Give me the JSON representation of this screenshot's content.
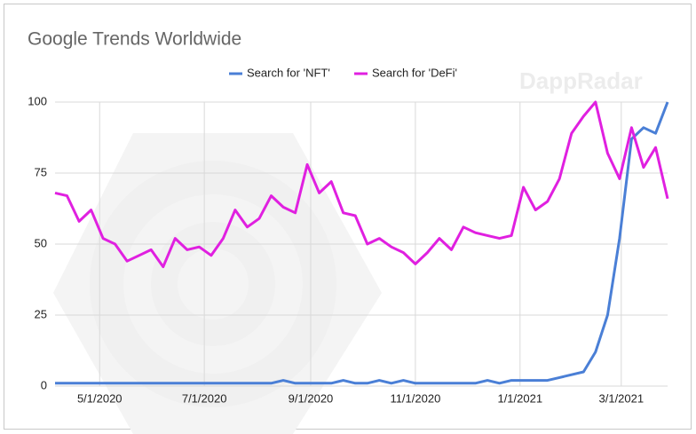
{
  "chart_data": {
    "type": "line",
    "title": "Google Trends Worldwide",
    "watermark": "DappRadar",
    "x": [
      "2020-04-05",
      "2020-04-12",
      "2020-04-19",
      "2020-04-26",
      "2020-05-03",
      "2020-05-10",
      "2020-05-17",
      "2020-05-24",
      "2020-05-31",
      "2020-06-07",
      "2020-06-14",
      "2020-06-21",
      "2020-06-28",
      "2020-07-05",
      "2020-07-12",
      "2020-07-19",
      "2020-07-26",
      "2020-08-02",
      "2020-08-09",
      "2020-08-16",
      "2020-08-23",
      "2020-08-30",
      "2020-09-06",
      "2020-09-13",
      "2020-09-20",
      "2020-09-27",
      "2020-10-04",
      "2020-10-11",
      "2020-10-18",
      "2020-10-25",
      "2020-11-01",
      "2020-11-08",
      "2020-11-15",
      "2020-11-22",
      "2020-11-29",
      "2020-12-06",
      "2020-12-13",
      "2020-12-20",
      "2020-12-27",
      "2021-01-03",
      "2021-01-10",
      "2021-01-17",
      "2021-01-24",
      "2021-01-31",
      "2021-02-07",
      "2021-02-14",
      "2021-02-21",
      "2021-02-28",
      "2021-03-07",
      "2021-03-14",
      "2021-03-21",
      "2021-03-28"
    ],
    "series": [
      {
        "name": "Search for 'NFT'",
        "color": "#4a7fd6",
        "values": [
          1,
          1,
          1,
          1,
          1,
          1,
          1,
          1,
          1,
          1,
          1,
          1,
          1,
          1,
          1,
          1,
          1,
          1,
          1,
          2,
          1,
          1,
          1,
          1,
          2,
          1,
          1,
          2,
          1,
          2,
          1,
          1,
          1,
          1,
          1,
          1,
          2,
          1,
          2,
          2,
          2,
          2,
          3,
          4,
          5,
          12,
          25,
          52,
          87,
          91,
          89,
          100
        ]
      },
      {
        "name": "Search for 'DeFi'",
        "color": "#e020e0",
        "values": [
          68,
          67,
          58,
          62,
          52,
          50,
          44,
          46,
          48,
          42,
          52,
          48,
          49,
          46,
          52,
          62,
          56,
          59,
          67,
          63,
          61,
          78,
          68,
          72,
          61,
          60,
          50,
          52,
          49,
          47,
          43,
          47,
          52,
          48,
          56,
          54,
          53,
          52,
          53,
          70,
          62,
          65,
          73,
          89,
          95,
          100,
          82,
          73,
          91,
          77,
          84,
          66
        ]
      }
    ],
    "xlim": [
      "2020-04-05",
      "2021-03-28"
    ],
    "xticks": [
      {
        "value": "2020-05-01",
        "label": "5/1/2020"
      },
      {
        "value": "2020-07-01",
        "label": "7/1/2020"
      },
      {
        "value": "2020-09-01",
        "label": "9/1/2020"
      },
      {
        "value": "2020-11-01",
        "label": "11/1/2020"
      },
      {
        "value": "2021-01-01",
        "label": "1/1/2021"
      },
      {
        "value": "2021-03-01",
        "label": "3/1/2021"
      }
    ],
    "ylim": [
      0,
      100
    ],
    "yticks": [
      0,
      25,
      50,
      75,
      100
    ],
    "grid": true,
    "legend": "top"
  }
}
